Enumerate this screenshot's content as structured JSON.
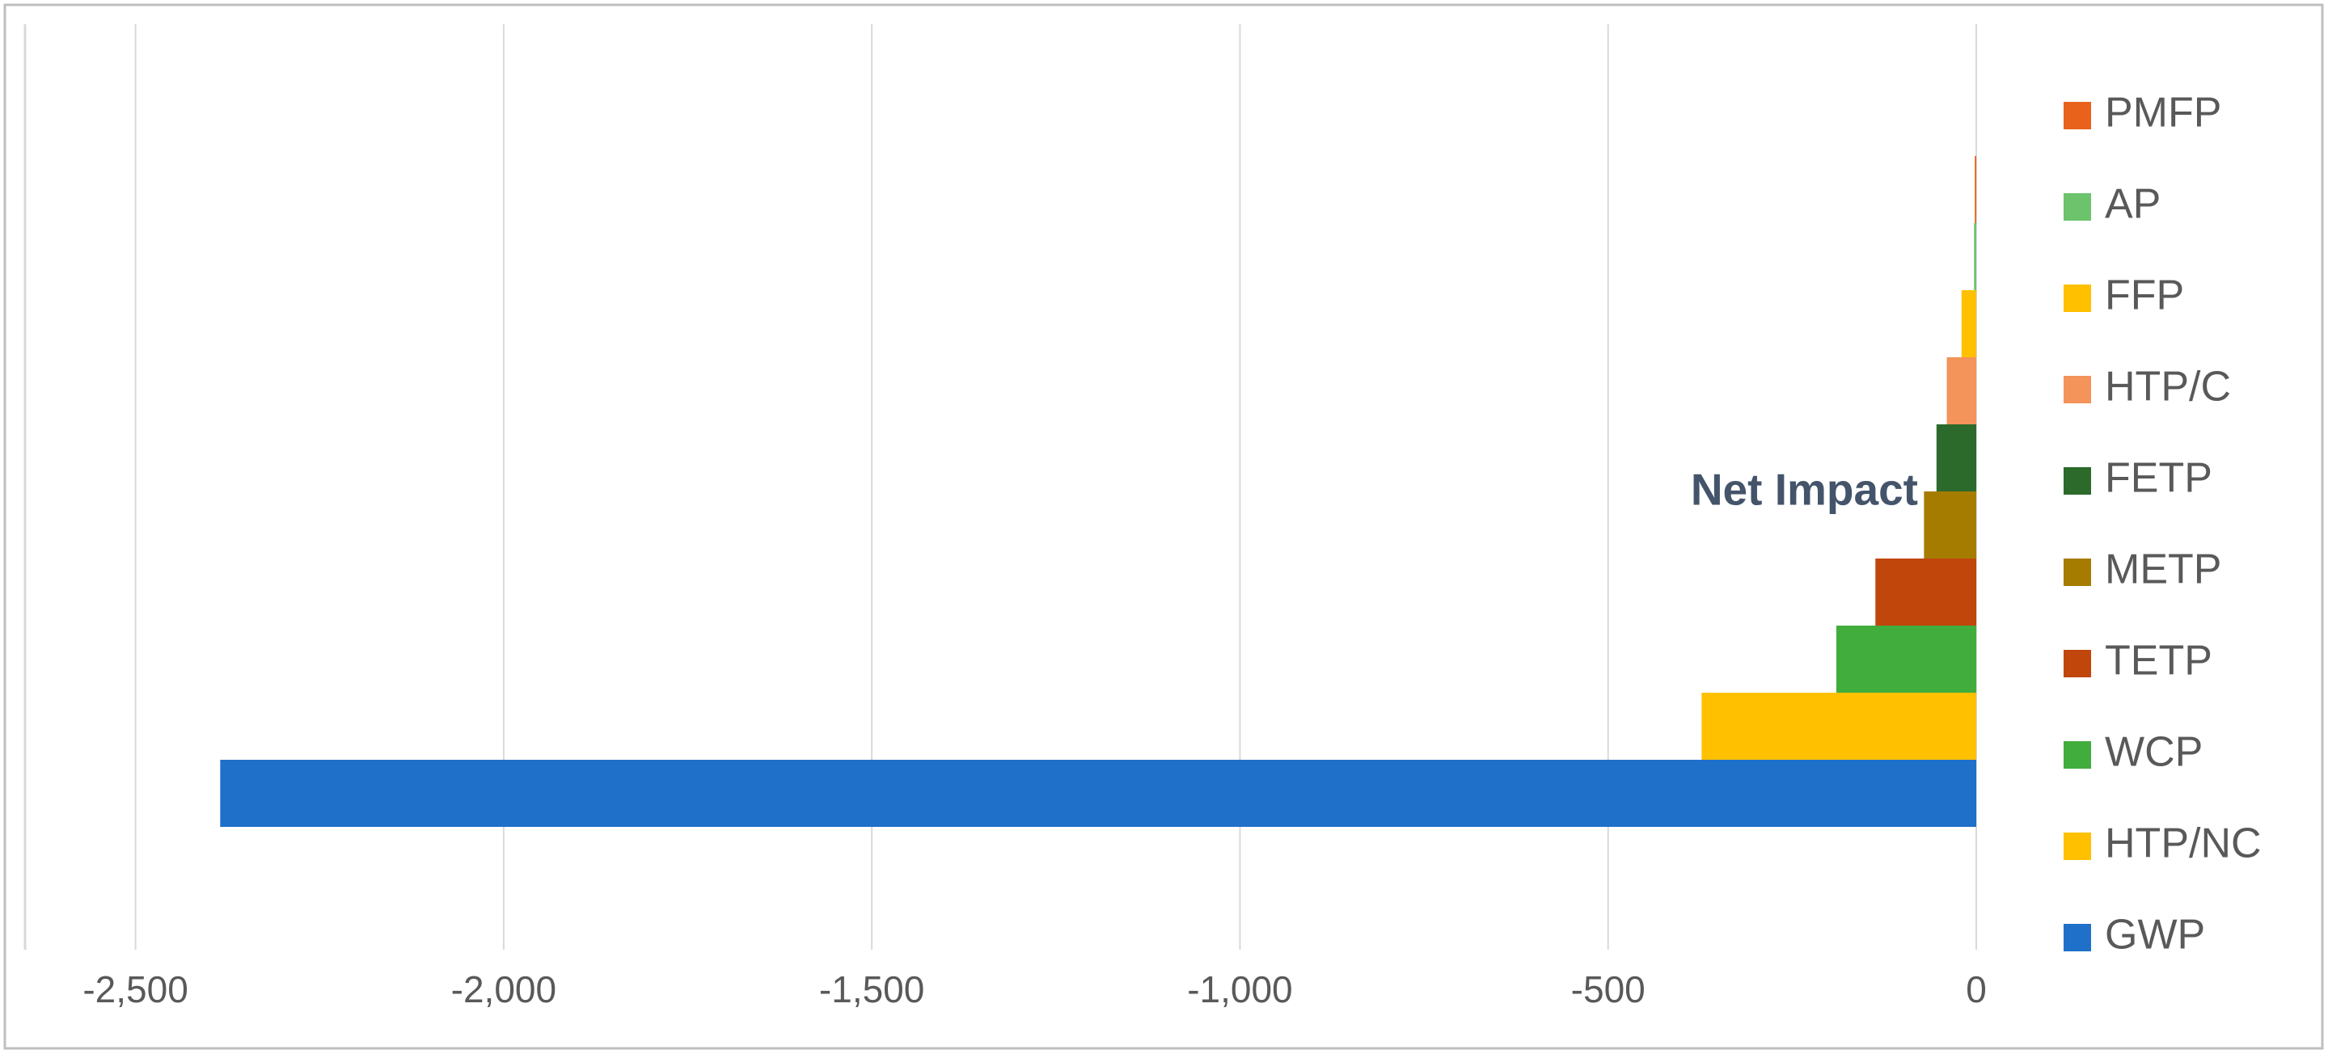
{
  "chart_data": {
    "type": "bar",
    "orientation": "horizontal",
    "categories": [
      "Net Impact"
    ],
    "series": [
      {
        "name": "GWP",
        "color": "#1f70c8",
        "values": [
          -2385
        ]
      },
      {
        "name": "HTP/NC",
        "color": "#ffc000",
        "values": [
          -373
        ]
      },
      {
        "name": "WCP",
        "color": "#40ad3c",
        "values": [
          -190
        ]
      },
      {
        "name": "TETP",
        "color": "#c0460c",
        "values": [
          -137
        ]
      },
      {
        "name": "METP",
        "color": "#a67c00",
        "values": [
          -71
        ]
      },
      {
        "name": "FETP",
        "color": "#2b6a2b",
        "values": [
          -54
        ]
      },
      {
        "name": "HTP/C",
        "color": "#f4935a",
        "values": [
          -40
        ]
      },
      {
        "name": "FFP",
        "color": "#ffc000",
        "values": [
          -20
        ]
      },
      {
        "name": "AP",
        "color": "#6cc36c",
        "values": [
          -3
        ]
      },
      {
        "name": "PMFP",
        "color": "#e8621c",
        "values": [
          -2
        ]
      }
    ],
    "xlim": [
      -2650,
      0
    ],
    "xticks": [
      {
        "value": -2500,
        "label": "-2,500"
      },
      {
        "value": -2000,
        "label": "-2,000"
      },
      {
        "value": -1500,
        "label": "-1,500"
      },
      {
        "value": -1000,
        "label": "-1,000"
      },
      -500,
      0
    ],
    "grid": true,
    "legend": "right"
  }
}
